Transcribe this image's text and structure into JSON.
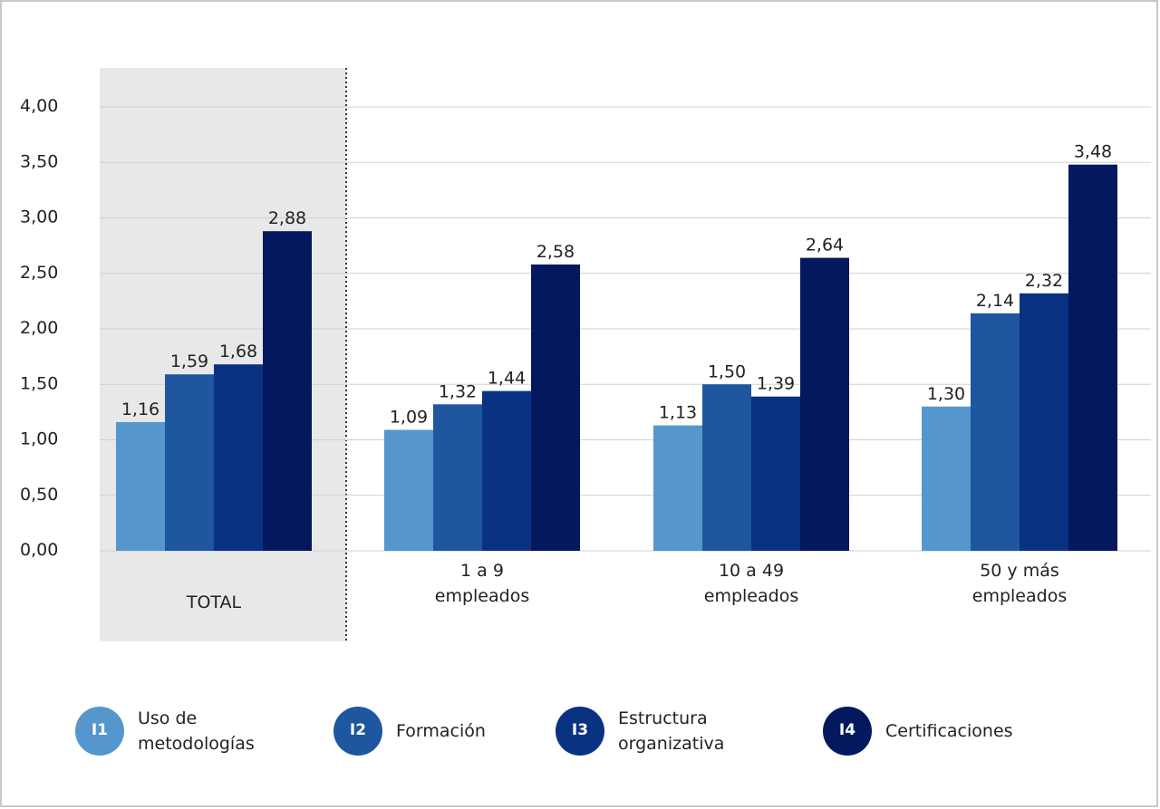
{
  "chart_data": {
    "type": "bar",
    "categories": [
      "TOTAL",
      "1 a 9\nempleados",
      "10 a 49\nempleados",
      "50 y más\nempleados"
    ],
    "series": [
      {
        "code": "I1",
        "name": "Uso de\nmetodologías",
        "color": "#5597cc",
        "values": [
          1.16,
          1.09,
          1.13,
          1.3
        ],
        "value_labels": [
          "1,16",
          "1,09",
          "1,13",
          "1,30"
        ]
      },
      {
        "code": "I2",
        "name": "Formación",
        "color": "#1e56a0",
        "values": [
          1.59,
          1.32,
          1.5,
          2.14
        ],
        "value_labels": [
          "1,59",
          "1,32",
          "1,50",
          "2,14"
        ]
      },
      {
        "code": "I3",
        "name": "Estructura\norganizativa",
        "color": "#0a3282",
        "values": [
          1.68,
          1.44,
          1.39,
          2.32
        ],
        "value_labels": [
          "1,68",
          "1,44",
          "1,39",
          "2,32"
        ]
      },
      {
        "code": "I4",
        "name": "Certificaciones",
        "color": "#03185e",
        "values": [
          2.88,
          2.58,
          2.64,
          3.48
        ],
        "value_labels": [
          "2,88",
          "2,58",
          "2,64",
          "3,48"
        ]
      }
    ],
    "ylim": [
      0,
      4
    ],
    "yticks": [
      {
        "value": 0,
        "label": "0,00"
      },
      {
        "value": 0.5,
        "label": "0,50"
      },
      {
        "value": 1,
        "label": "1,00"
      },
      {
        "value": 1.5,
        "label": "1,50"
      },
      {
        "value": 2,
        "label": "2,00"
      },
      {
        "value": 2.5,
        "label": "2,50"
      },
      {
        "value": 3,
        "label": "3,00"
      },
      {
        "value": 3.5,
        "label": "3,50"
      },
      {
        "value": 4,
        "label": "4,00"
      }
    ],
    "grid": true
  }
}
